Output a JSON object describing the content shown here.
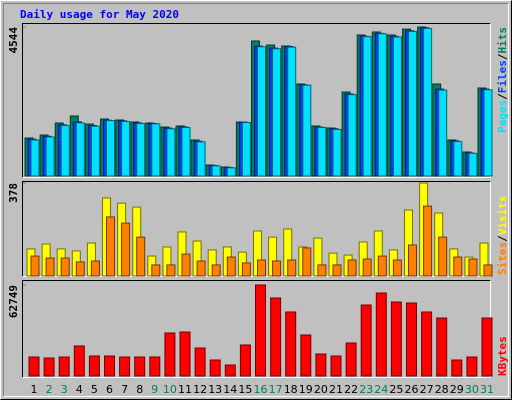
{
  "title": "Daily usage for May 2020",
  "legend_separator": "/",
  "chart_data": [
    {
      "type": "bar",
      "ylim": [
        0,
        4544
      ],
      "yticks": [
        4544
      ],
      "series": [
        {
          "name": "Pages",
          "color": "#00e0ff",
          "values": [
            1098,
            1190,
            1540,
            1620,
            1520,
            1690,
            1660,
            1600,
            1590,
            1440,
            1480,
            1040,
            310,
            250,
            1630,
            3940,
            3880,
            3930,
            2770,
            1480,
            1420,
            2480,
            4250,
            4340,
            4240,
            4410,
            4500,
            2620,
            1050,
            690,
            2630
          ]
        },
        {
          "name": "Files",
          "color": "#0040ff",
          "values": [
            1120,
            1210,
            1560,
            1650,
            1540,
            1700,
            1680,
            1620,
            1600,
            1460,
            1500,
            1060,
            320,
            260,
            1640,
            3960,
            3900,
            3950,
            2780,
            1490,
            1440,
            2500,
            4260,
            4350,
            4260,
            4430,
            4520,
            2650,
            1070,
            700,
            2650
          ]
        },
        {
          "name": "Hits",
          "color": "#00805c",
          "values": [
            1159,
            1250,
            1617,
            1830,
            1586,
            1738,
            1708,
            1647,
            1617,
            1494,
            1525,
            1098,
            336,
            274,
            1647,
            4117,
            3995,
            3965,
            2806,
            1525,
            1464,
            2562,
            4300,
            4392,
            4300,
            4480,
            4544,
            2806,
            1098,
            732,
            2684
          ]
        }
      ]
    },
    {
      "type": "bar",
      "ylim": [
        0,
        378
      ],
      "yticks": [
        378
      ],
      "series": [
        {
          "name": "Sites",
          "color": "#ff8000",
          "values": [
            81,
            73,
            73,
            57,
            61,
            240,
            215,
            158,
            45,
            45,
            89,
            61,
            45,
            77,
            53,
            65,
            61,
            65,
            114,
            45,
            45,
            65,
            69,
            81,
            65,
            126,
            284,
            158,
            77,
            69,
            45
          ]
        },
        {
          "name": "Visits",
          "color": "#ffff00",
          "values": [
            110,
            130,
            110,
            102,
            134,
            317,
            296,
            280,
            81,
            118,
            179,
            142,
            106,
            118,
            97,
            183,
            158,
            191,
            118,
            154,
            93,
            85,
            138,
            183,
            106,
            268,
            378,
            256,
            110,
            77,
            134
          ]
        }
      ]
    },
    {
      "type": "bar",
      "ylim": [
        0,
        62749
      ],
      "yticks": [
        62749
      ],
      "categories": [
        "1",
        "2",
        "3",
        "4",
        "5",
        "6",
        "7",
        "8",
        "9",
        "10",
        "11",
        "12",
        "13",
        "14",
        "15",
        "16",
        "17",
        "18",
        "19",
        "20",
        "21",
        "22",
        "23",
        "24",
        "25",
        "26",
        "27",
        "28",
        "29",
        "30",
        "31"
      ],
      "category_colors": [
        "#000000",
        "#00805c",
        "#00805c",
        "#000000",
        "#000000",
        "#000000",
        "#000000",
        "#000000",
        "#00805c",
        "#00805c",
        "#000000",
        "#000000",
        "#000000",
        "#000000",
        "#000000",
        "#00805c",
        "#00805c",
        "#000000",
        "#000000",
        "#000000",
        "#000000",
        "#000000",
        "#00805c",
        "#00805c",
        "#000000",
        "#000000",
        "#000000",
        "#000000",
        "#000000",
        "#00805c",
        "#00805c"
      ],
      "series": [
        {
          "name": "KBytes",
          "color": "#ff0000",
          "values": [
            13101,
            12411,
            13101,
            20686,
            13791,
            13791,
            13101,
            13101,
            13101,
            29650,
            30340,
            19307,
            11033,
            7585,
            21376,
            62749,
            53785,
            44131,
            28272,
            15170,
            13791,
            22755,
            48958,
            57232,
            51027,
            50337,
            44131,
            39994,
            11033,
            13101,
            39994
          ]
        }
      ]
    }
  ]
}
